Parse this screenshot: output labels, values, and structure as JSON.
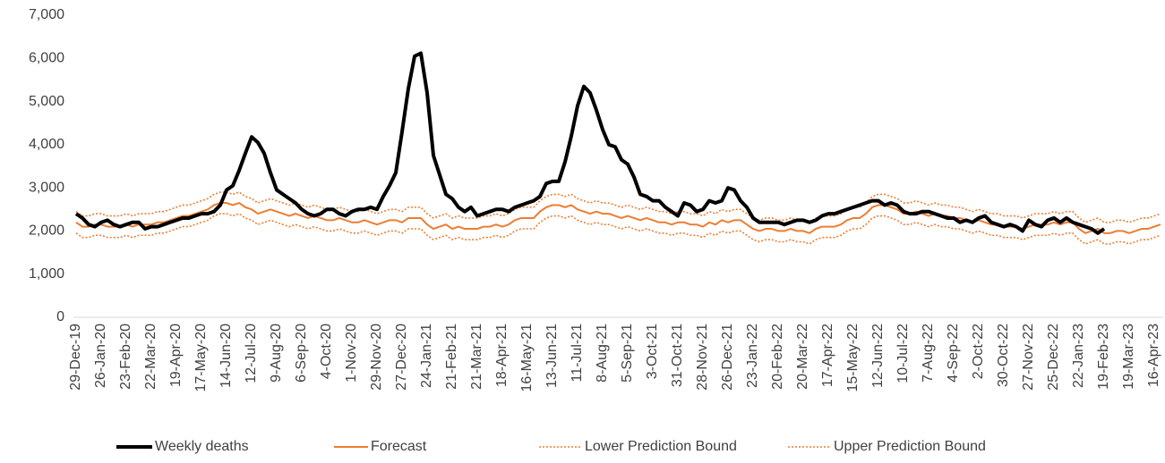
{
  "chart_data": {
    "type": "line",
    "categories": [
      "29-Dec-19",
      null,
      null,
      null,
      "26-Jan-20",
      null,
      null,
      null,
      "23-Feb-20",
      null,
      null,
      null,
      "22-Mar-20",
      null,
      null,
      null,
      "19-Apr-20",
      null,
      null,
      null,
      "17-May-20",
      null,
      null,
      null,
      "14-Jun-20",
      null,
      null,
      null,
      "12-Jul-20",
      null,
      null,
      null,
      "9-Aug-20",
      null,
      null,
      null,
      "6-Sep-20",
      null,
      null,
      null,
      "4-Oct-20",
      null,
      null,
      null,
      "1-Nov-20",
      null,
      null,
      null,
      "29-Nov-20",
      null,
      null,
      null,
      "27-Dec-20",
      null,
      null,
      null,
      "24-Jan-21",
      null,
      null,
      null,
      "21-Feb-21",
      null,
      null,
      null,
      "21-Mar-21",
      null,
      null,
      null,
      "18-Apr-21",
      null,
      null,
      null,
      "16-May-21",
      null,
      null,
      null,
      "13-Jun-21",
      null,
      null,
      null,
      "11-Jul-21",
      null,
      null,
      null,
      "8-Aug-21",
      null,
      null,
      null,
      "5-Sep-21",
      null,
      null,
      null,
      "3-Oct-21",
      null,
      null,
      null,
      "31-Oct-21",
      null,
      null,
      null,
      "28-Nov-21",
      null,
      null,
      null,
      "26-Dec-21",
      null,
      null,
      null,
      "23-Jan-22",
      null,
      null,
      null,
      "20-Feb-22",
      null,
      null,
      null,
      "20-Mar-22",
      null,
      null,
      null,
      "17-Apr-22",
      null,
      null,
      null,
      "15-May-22",
      null,
      null,
      null,
      "12-Jun-22",
      null,
      null,
      null,
      "10-Jul-22",
      null,
      null,
      null,
      "7-Aug-22",
      null,
      null,
      null,
      "4-Sep-22",
      null,
      null,
      null,
      "2-Oct-22",
      null,
      null,
      null,
      "30-Oct-22",
      null,
      null,
      null,
      "27-Nov-22",
      null,
      null,
      null,
      "25-Dec-22",
      null,
      null,
      null,
      "22-Jan-23",
      null,
      null,
      null,
      "19-Feb-23",
      null,
      null,
      null,
      "19-Mar-23",
      null,
      null,
      null,
      "16-Apr-23",
      null
    ],
    "series": [
      {
        "name": "Weekly deaths",
        "color": "#000000",
        "line_style": "thick",
        "values": [
          2400,
          2300,
          2150,
          2100,
          2200,
          2250,
          2150,
          2100,
          2150,
          2200,
          2200,
          2050,
          2100,
          2100,
          2150,
          2200,
          2250,
          2300,
          2300,
          2350,
          2400,
          2400,
          2450,
          2600,
          2950,
          3050,
          3400,
          3800,
          4180,
          4050,
          3800,
          3350,
          2950,
          2850,
          2750,
          2650,
          2500,
          2400,
          2350,
          2400,
          2500,
          2500,
          2400,
          2350,
          2450,
          2500,
          2500,
          2550,
          2500,
          2800,
          3050,
          3350,
          4300,
          5300,
          6050,
          6120,
          5200,
          3750,
          3300,
          2850,
          2750,
          2550,
          2450,
          2550,
          2350,
          2400,
          2450,
          2500,
          2500,
          2450,
          2550,
          2600,
          2650,
          2700,
          2800,
          3100,
          3150,
          3150,
          3600,
          4200,
          4900,
          5350,
          5200,
          4800,
          4350,
          4000,
          3950,
          3650,
          3550,
          3250,
          2850,
          2800,
          2700,
          2700,
          2550,
          2450,
          2350,
          2650,
          2600,
          2450,
          2500,
          2700,
          2650,
          2700,
          3000,
          2950,
          2700,
          2550,
          2300,
          2200,
          2200,
          2200,
          2200,
          2150,
          2200,
          2250,
          2250,
          2200,
          2250,
          2350,
          2400,
          2400,
          2450,
          2500,
          2550,
          2600,
          2650,
          2700,
          2700,
          2600,
          2650,
          2600,
          2450,
          2400,
          2400,
          2450,
          2450,
          2400,
          2350,
          2300,
          2300,
          2200,
          2250,
          2200,
          2300,
          2350,
          2200,
          2150,
          2100,
          2150,
          2100,
          2000,
          2250,
          2150,
          2100,
          2250,
          2300,
          2200,
          2300,
          2200,
          2150,
          2100,
          2050,
          1950,
          2050,
          null,
          null,
          null,
          null,
          null,
          null,
          null,
          null,
          null
        ]
      },
      {
        "name": "Forecast",
        "color": "#ed7d31",
        "line_style": "solid",
        "values": [
          2200,
          2100,
          2100,
          2150,
          2150,
          2100,
          2100,
          2100,
          2150,
          2100,
          2150,
          2150,
          2150,
          2200,
          2200,
          2250,
          2300,
          2350,
          2350,
          2400,
          2450,
          2500,
          2600,
          2650,
          2650,
          2600,
          2650,
          2550,
          2500,
          2400,
          2450,
          2500,
          2450,
          2400,
          2350,
          2400,
          2350,
          2300,
          2350,
          2300,
          2250,
          2250,
          2300,
          2250,
          2200,
          2200,
          2250,
          2200,
          2150,
          2200,
          2250,
          2250,
          2200,
          2300,
          2300,
          2300,
          2150,
          2050,
          2100,
          2150,
          2050,
          2100,
          2050,
          2050,
          2050,
          2100,
          2100,
          2150,
          2100,
          2150,
          2250,
          2300,
          2300,
          2300,
          2450,
          2550,
          2600,
          2600,
          2550,
          2600,
          2500,
          2450,
          2400,
          2450,
          2400,
          2400,
          2350,
          2300,
          2350,
          2300,
          2250,
          2300,
          2250,
          2200,
          2200,
          2150,
          2200,
          2200,
          2150,
          2150,
          2100,
          2200,
          2150,
          2250,
          2200,
          2250,
          2250,
          2150,
          2050,
          2000,
          2050,
          2050,
          2000,
          2000,
          2050,
          2000,
          2000,
          1950,
          2050,
          2100,
          2100,
          2100,
          2150,
          2250,
          2300,
          2300,
          2400,
          2550,
          2600,
          2600,
          2550,
          2500,
          2400,
          2400,
          2450,
          2400,
          2350,
          2400,
          2350,
          2350,
          2300,
          2300,
          2250,
          2200,
          2250,
          2200,
          2150,
          2150,
          2100,
          2100,
          2100,
          2050,
          2100,
          2150,
          2150,
          2150,
          2200,
          2150,
          2200,
          2200,
          2050,
          1950,
          2000,
          2050,
          1950,
          1950,
          2000,
          2000,
          1950,
          2000,
          2050,
          2050,
          2100,
          2150
        ]
      },
      {
        "name": "Lower Prediction Bound",
        "color": "#ed7d31",
        "line_style": "dotted",
        "values": [
          1950,
          1850,
          1850,
          1900,
          1900,
          1850,
          1850,
          1850,
          1900,
          1850,
          1900,
          1900,
          1900,
          1950,
          1950,
          2000,
          2050,
          2100,
          2100,
          2150,
          2200,
          2250,
          2350,
          2400,
          2400,
          2350,
          2400,
          2300,
          2250,
          2150,
          2200,
          2250,
          2200,
          2150,
          2100,
          2150,
          2100,
          2050,
          2100,
          2050,
          2000,
          2000,
          2050,
          2000,
          1950,
          1950,
          2000,
          1950,
          1900,
          1950,
          2000,
          2000,
          1950,
          2050,
          2050,
          2050,
          1900,
          1800,
          1850,
          1900,
          1800,
          1850,
          1800,
          1800,
          1800,
          1850,
          1850,
          1900,
          1850,
          1900,
          2000,
          2050,
          2050,
          2050,
          2200,
          2300,
          2350,
          2350,
          2300,
          2350,
          2250,
          2200,
          2150,
          2200,
          2150,
          2150,
          2100,
          2050,
          2100,
          2050,
          2000,
          2050,
          2000,
          1950,
          1950,
          1900,
          1950,
          1950,
          1900,
          1900,
          1850,
          1950,
          1900,
          2000,
          1950,
          2000,
          2000,
          1900,
          1800,
          1750,
          1800,
          1800,
          1750,
          1750,
          1800,
          1750,
          1750,
          1700,
          1800,
          1850,
          1850,
          1850,
          1900,
          2000,
          2050,
          2050,
          2150,
          2300,
          2350,
          2350,
          2300,
          2250,
          2150,
          2150,
          2200,
          2150,
          2100,
          2150,
          2100,
          2100,
          2050,
          2050,
          2000,
          1950,
          2000,
          1950,
          1900,
          1900,
          1850,
          1850,
          1850,
          1800,
          1850,
          1900,
          1900,
          1900,
          1950,
          1900,
          1950,
          1950,
          1800,
          1700,
          1750,
          1800,
          1700,
          1700,
          1750,
          1750,
          1700,
          1750,
          1800,
          1800,
          1850,
          1900
        ]
      },
      {
        "name": "Upper Prediction Bound",
        "color": "#ed7d31",
        "line_style": "dotted",
        "values": [
          2450,
          2350,
          2350,
          2400,
          2400,
          2350,
          2350,
          2350,
          2400,
          2350,
          2400,
          2400,
          2400,
          2450,
          2450,
          2500,
          2550,
          2600,
          2600,
          2650,
          2700,
          2750,
          2850,
          2900,
          2900,
          2850,
          2900,
          2800,
          2750,
          2650,
          2700,
          2750,
          2700,
          2650,
          2600,
          2650,
          2600,
          2550,
          2600,
          2550,
          2500,
          2500,
          2550,
          2500,
          2450,
          2450,
          2500,
          2450,
          2400,
          2450,
          2500,
          2500,
          2450,
          2550,
          2550,
          2550,
          2400,
          2300,
          2350,
          2400,
          2300,
          2350,
          2300,
          2300,
          2300,
          2350,
          2350,
          2400,
          2350,
          2400,
          2500,
          2550,
          2550,
          2550,
          2700,
          2800,
          2850,
          2850,
          2800,
          2850,
          2750,
          2700,
          2650,
          2700,
          2650,
          2650,
          2600,
          2550,
          2600,
          2550,
          2500,
          2550,
          2500,
          2450,
          2450,
          2400,
          2450,
          2450,
          2400,
          2400,
          2350,
          2450,
          2400,
          2500,
          2450,
          2500,
          2500,
          2400,
          2300,
          2250,
          2300,
          2300,
          2250,
          2250,
          2300,
          2250,
          2250,
          2200,
          2300,
          2350,
          2350,
          2350,
          2400,
          2500,
          2550,
          2550,
          2650,
          2800,
          2850,
          2850,
          2800,
          2750,
          2650,
          2650,
          2700,
          2650,
          2600,
          2650,
          2600,
          2600,
          2550,
          2550,
          2500,
          2450,
          2500,
          2450,
          2400,
          2400,
          2350,
          2350,
          2350,
          2300,
          2350,
          2400,
          2400,
          2400,
          2450,
          2400,
          2450,
          2450,
          2300,
          2200,
          2250,
          2300,
          2200,
          2200,
          2250,
          2250,
          2200,
          2250,
          2300,
          2300,
          2350,
          2400
        ]
      }
    ],
    "ylim": [
      0,
      7000
    ],
    "yticks": [
      0,
      {
        "value": 1000,
        "label": "1,000"
      },
      {
        "value": 2000,
        "label": "2,000"
      },
      {
        "value": 3000,
        "label": "3,000"
      },
      {
        "value": 4000,
        "label": "4,000"
      },
      {
        "value": 5000,
        "label": "5,000"
      },
      {
        "value": 6000,
        "label": "6,000"
      },
      {
        "value": 7000,
        "label": "7,000"
      }
    ],
    "grid": false,
    "legend": "bottom"
  }
}
